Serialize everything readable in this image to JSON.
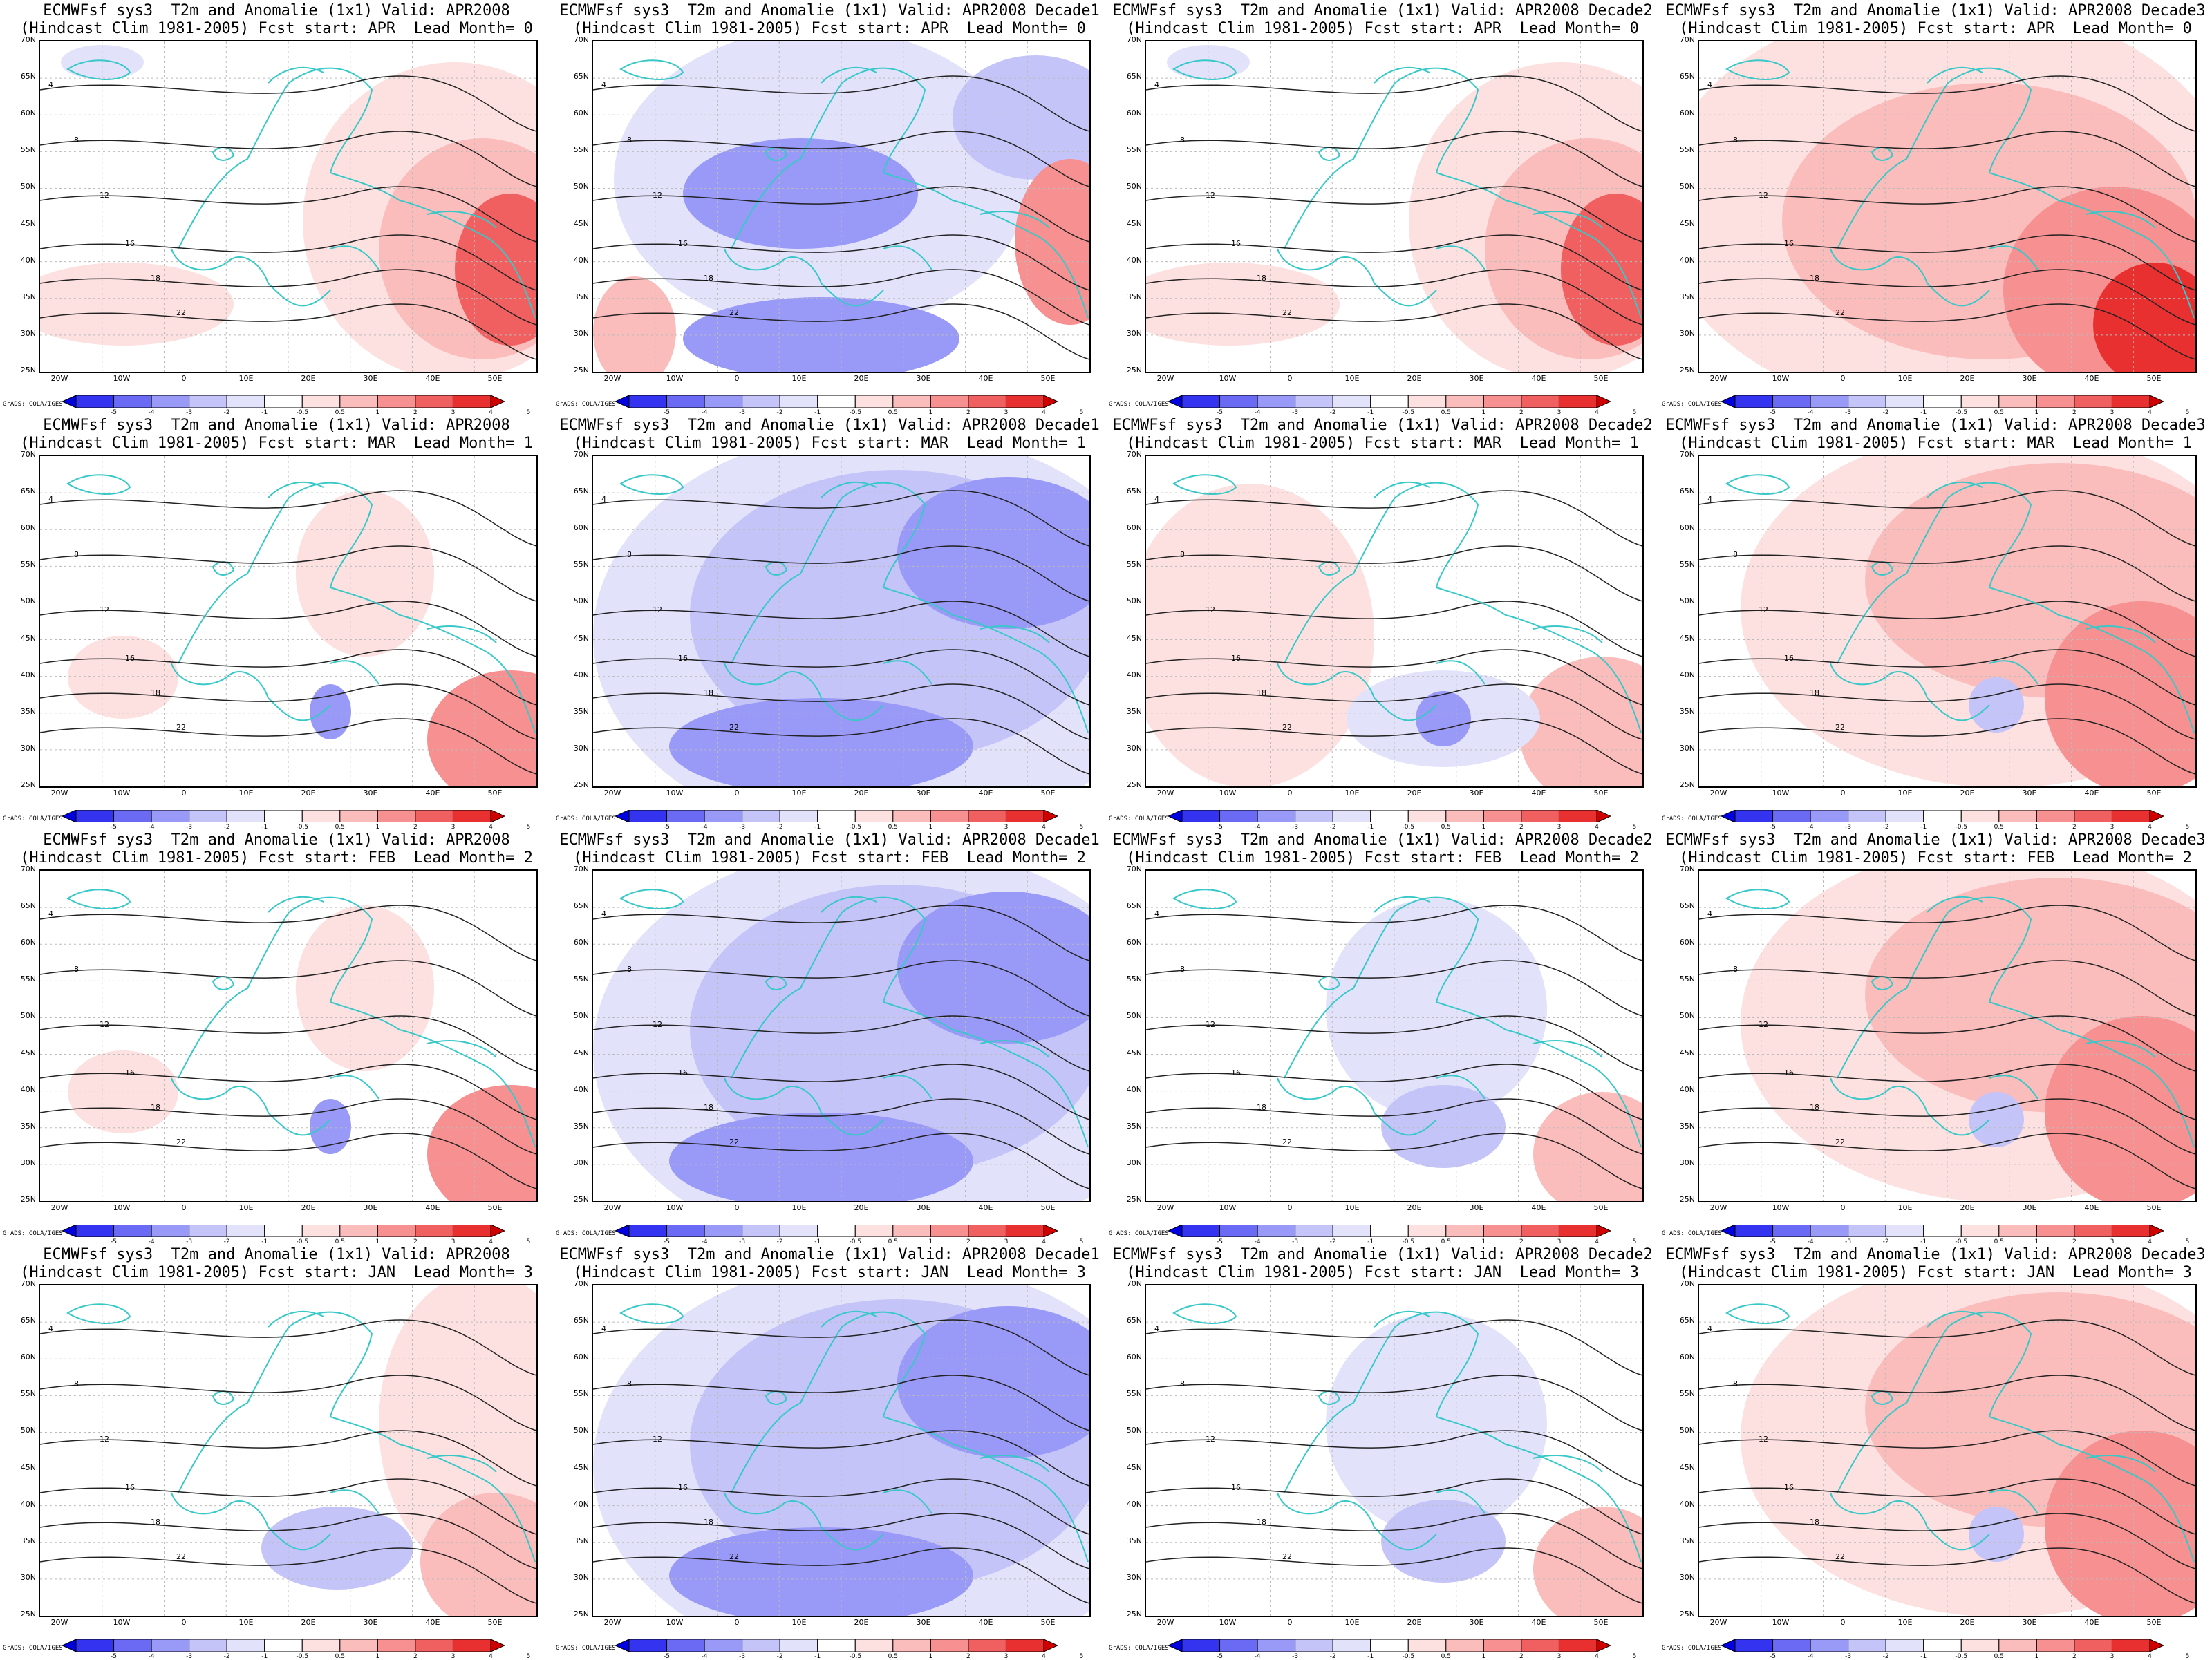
{
  "figure": {
    "title_line1_prefix": "ECMWFsf sys3  T2m and Anomalie (1x1) Valid: ",
    "title_line2_prefix": "(Hindcast Clim 1981-2005) Fcst start: ",
    "lead_prefix": "  Lead Month= ",
    "credit": "GrADS: COLA/IGES",
    "lat_labels": [
      "70N",
      "65N",
      "60N",
      "55N",
      "50N",
      "45N",
      "40N",
      "35N",
      "30N",
      "25N"
    ],
    "lon_labels": [
      "20W",
      "10W",
      "0",
      "10E",
      "20E",
      "30E",
      "40E",
      "50E"
    ],
    "colorbar_labels": [
      "-5",
      "-4",
      "-3",
      "-2",
      "-1",
      "-0.5",
      "0.5",
      "1",
      "2",
      "3",
      "4",
      "5"
    ],
    "colorbar_colors": [
      "#0000e0",
      "#3333f0",
      "#6a6af5",
      "#9999f7",
      "#c4c4f9",
      "#e2e2fb",
      "#ffffff",
      "#fde0e0",
      "#fbbcbc",
      "#f79090",
      "#f06060",
      "#e83030",
      "#d00000"
    ],
    "coastline_color": "#38c8c8",
    "contour_labels": [
      "4",
      "8",
      "12",
      "16",
      "18",
      "22"
    ]
  },
  "columns": [
    {
      "valid": "APR2008"
    },
    {
      "valid": "APR2008 Decade1"
    },
    {
      "valid": "APR2008 Decade2"
    },
    {
      "valid": "APR2008 Decade3"
    }
  ],
  "rows": [
    {
      "fcst_start": "APR",
      "lead": "0"
    },
    {
      "fcst_start": "MAR",
      "lead": "1"
    },
    {
      "fcst_start": "FEB",
      "lead": "2"
    },
    {
      "fcst_start": "JAN",
      "lead": "3"
    }
  ],
  "anomaly_pattern": [
    [
      "warm-east",
      "cold-central",
      "warm-east",
      "warm-all"
    ],
    [
      "neutral-weak",
      "cold-broad",
      "weak-warm-west",
      "warm-broad"
    ],
    [
      "neutral-weak",
      "cold-broad",
      "weak-cold",
      "warm-broad"
    ],
    [
      "warm-east-weak",
      "cold-broad",
      "weak-cold",
      "warm-broad"
    ]
  ]
}
